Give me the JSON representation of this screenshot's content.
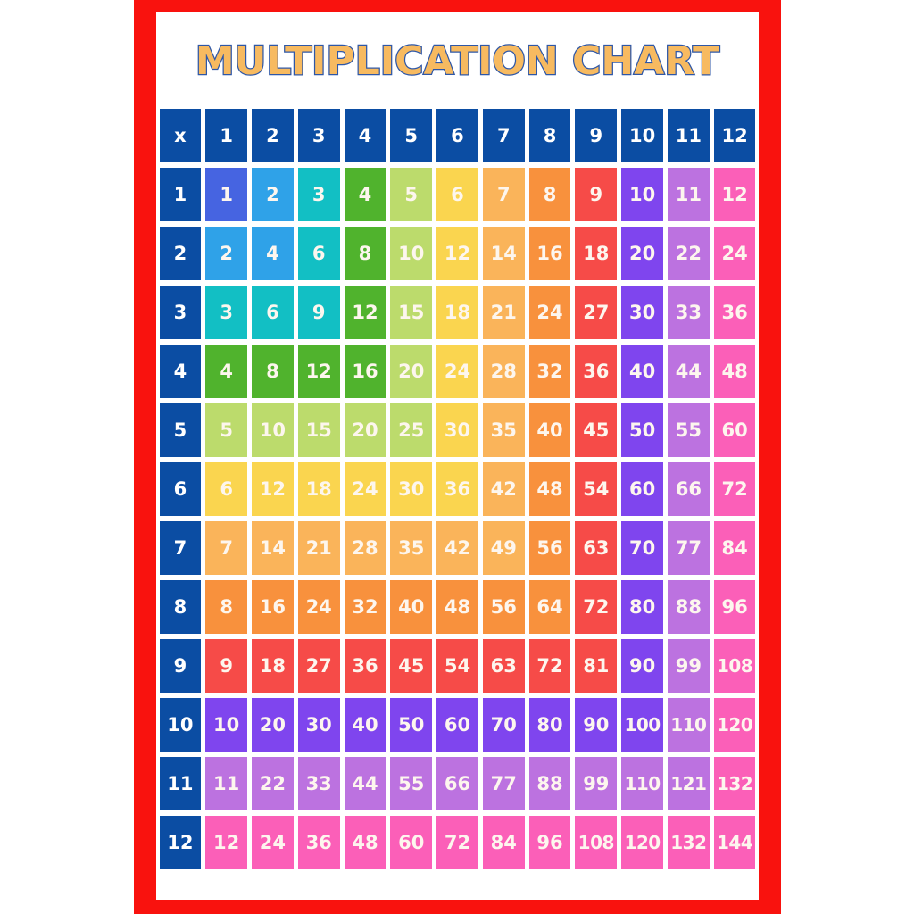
{
  "poster": {
    "frame_color": "#F9120E",
    "title_fill": "#F7BA60",
    "title_outline": "#2E57A7"
  },
  "chart_data": {
    "type": "table",
    "title": "MULTIPLICATION CHART",
    "corner_label": "x",
    "col_headers": [
      "1",
      "2",
      "3",
      "4",
      "5",
      "6",
      "7",
      "8",
      "9",
      "10",
      "11",
      "12"
    ],
    "row_headers": [
      "1",
      "2",
      "3",
      "4",
      "5",
      "6",
      "7",
      "8",
      "9",
      "10",
      "11",
      "12"
    ],
    "values": [
      [
        1,
        2,
        3,
        4,
        5,
        6,
        7,
        8,
        9,
        10,
        11,
        12
      ],
      [
        2,
        4,
        6,
        8,
        10,
        12,
        14,
        16,
        18,
        20,
        22,
        24
      ],
      [
        3,
        6,
        9,
        12,
        15,
        18,
        21,
        24,
        27,
        30,
        33,
        36
      ],
      [
        4,
        8,
        12,
        16,
        20,
        24,
        28,
        32,
        36,
        40,
        44,
        48
      ],
      [
        5,
        10,
        15,
        20,
        25,
        30,
        35,
        40,
        45,
        50,
        55,
        60
      ],
      [
        6,
        12,
        18,
        24,
        30,
        36,
        42,
        48,
        54,
        60,
        66,
        72
      ],
      [
        7,
        14,
        21,
        28,
        35,
        42,
        49,
        56,
        63,
        70,
        77,
        84
      ],
      [
        8,
        16,
        24,
        32,
        40,
        48,
        56,
        64,
        72,
        80,
        88,
        96
      ],
      [
        9,
        18,
        27,
        36,
        45,
        54,
        63,
        72,
        81,
        90,
        99,
        108
      ],
      [
        10,
        20,
        30,
        40,
        50,
        60,
        70,
        80,
        90,
        100,
        110,
        120
      ],
      [
        11,
        22,
        33,
        44,
        55,
        66,
        77,
        88,
        99,
        110,
        121,
        132
      ],
      [
        12,
        24,
        36,
        48,
        60,
        72,
        84,
        96,
        108,
        120,
        132,
        144
      ]
    ],
    "colors": {
      "header_fill": "#0B4DA3",
      "header_text": "#FFFFFF",
      "cell_text": "#FDF6EE",
      "factor_colors": {
        "1": "#4664E1",
        "2": "#2FA2E8",
        "3": "#12BFC4",
        "4": "#50B32D",
        "5": "#BCDB6C",
        "6": "#FAD54F",
        "7": "#FAB45A",
        "8": "#F8913D",
        "9": "#F64B48",
        "10": "#7F45EE",
        "11": "#BC72E0",
        "12": "#FB5FB8"
      }
    }
  }
}
